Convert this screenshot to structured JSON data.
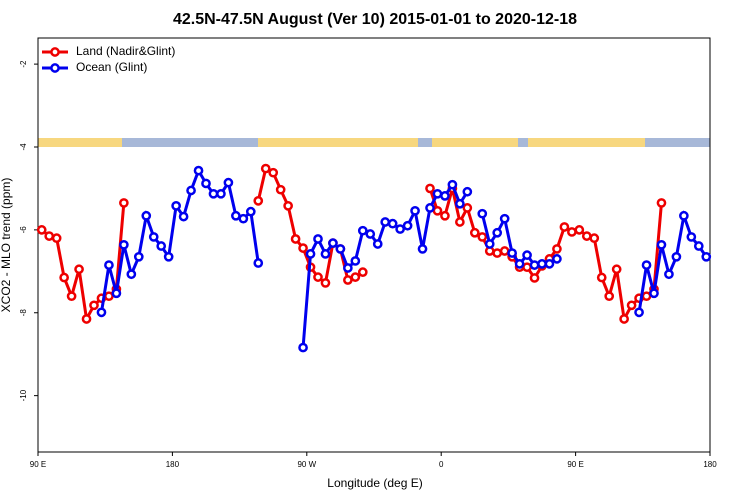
{
  "chart_data": {
    "type": "line",
    "title": "42.5N-47.5N August (Ver 10)   2015-01-01 to 2020-12-18",
    "x_label": "Longitude (deg E)",
    "y_label": "XCO2 - MLO trend (ppm)",
    "x": [
      92.5,
      97.5,
      102.5,
      107.5,
      112.5,
      117.5,
      122.5,
      127.5,
      132.5,
      137.5,
      142.5,
      147.5,
      152.5,
      157.5,
      162.5,
      167.5,
      172.5,
      177.5,
      182.5,
      187.5,
      192.5,
      197.5,
      202.5,
      207.5,
      212.5,
      217.5,
      222.5,
      227.5,
      232.5,
      237.5,
      242.5,
      247.5,
      252.5,
      257.5,
      262.5,
      267.5,
      272.5,
      277.5,
      282.5,
      287.5,
      292.5,
      297.5,
      302.5,
      307.5,
      312.5,
      317.5,
      322.5,
      327.5,
      332.5,
      337.5,
      342.5,
      347.5,
      352.5,
      357.5,
      362.5,
      367.5,
      372.5,
      377.5,
      382.5,
      387.5,
      392.5,
      397.5,
      402.5,
      407.5,
      412.5,
      417.5,
      422.5,
      427.5,
      432.5,
      437.5,
      442.5,
      447.5,
      452.5,
      457.5,
      462.5,
      467.5,
      472.5,
      477.5,
      482.5,
      487.5,
      492.5,
      497.5,
      502.5,
      507.5,
      512.5,
      517.5,
      522.5,
      527.5,
      532.5,
      537.5
    ],
    "series": [
      {
        "name": "Land (Nadir&Glint)",
        "color": "#ee0000",
        "values": [
          -6.0,
          -6.15,
          -6.2,
          -7.15,
          -7.6,
          -6.95,
          -8.15,
          -7.82,
          -7.65,
          -7.6,
          -7.43,
          -5.35,
          null,
          null,
          null,
          null,
          null,
          null,
          null,
          null,
          null,
          null,
          null,
          null,
          null,
          null,
          null,
          null,
          null,
          -5.3,
          -4.52,
          -4.62,
          -5.03,
          -5.42,
          -6.22,
          -6.44,
          -6.9,
          -7.14,
          -7.28,
          -6.32,
          -6.46,
          -7.21,
          -7.14,
          -7.02,
          null,
          null,
          null,
          null,
          null,
          null,
          null,
          null,
          -5.0,
          -5.54,
          -5.66,
          -5.0,
          -5.81,
          -5.47,
          -6.07,
          -6.17,
          -6.51,
          -6.56,
          -6.51,
          -6.65,
          -6.9,
          -6.9,
          -7.16,
          -6.87,
          -6.7,
          -6.46,
          -5.93,
          -6.05,
          -6.0,
          -6.15,
          -6.2,
          -7.15,
          -7.6,
          -6.95,
          -8.15,
          -7.82,
          -7.65,
          -7.6,
          -7.43,
          -5.35,
          null,
          null,
          null,
          null,
          null,
          null
        ]
      },
      {
        "name": "Ocean (Glint)",
        "color": "#0000ee",
        "values": [
          null,
          null,
          null,
          null,
          null,
          null,
          null,
          null,
          -7.99,
          -6.85,
          -7.53,
          -6.36,
          -7.07,
          -6.65,
          -5.66,
          -6.17,
          -6.39,
          -6.65,
          -5.42,
          -5.68,
          -5.05,
          -4.57,
          -4.88,
          -5.13,
          -5.13,
          -4.86,
          -5.66,
          -5.73,
          -5.56,
          -6.8,
          null,
          null,
          null,
          null,
          null,
          -8.84,
          -6.58,
          -6.22,
          -6.58,
          -6.32,
          -6.46,
          -6.92,
          -6.75,
          -6.02,
          -6.1,
          -6.34,
          -5.81,
          -5.85,
          -5.98,
          -5.9,
          -5.54,
          -6.46,
          -5.47,
          -5.13,
          -5.18,
          -4.91,
          -5.37,
          -5.08,
          null,
          -5.61,
          -6.34,
          -6.07,
          -5.73,
          -6.56,
          -6.82,
          -6.61,
          -6.85,
          -6.82,
          -6.82,
          -6.7,
          null,
          null,
          null,
          null,
          null,
          null,
          null,
          null,
          null,
          null,
          -7.99,
          -6.85,
          -7.53,
          -6.36,
          -7.07,
          -6.65,
          -5.66,
          -6.17,
          -6.39,
          -6.65
        ]
      }
    ],
    "xlim": [
      90,
      540
    ],
    "xticks": [
      {
        "value": 90,
        "label": "90 E"
      },
      {
        "value": 180,
        "label": "180"
      },
      {
        "value": 270,
        "label": "90 W"
      },
      {
        "value": 360,
        "label": "0"
      },
      {
        "value": 450,
        "label": "90 E"
      },
      {
        "value": 540,
        "label": "180"
      }
    ],
    "ylim": [
      -11.36,
      -1.37
    ],
    "yticks": [
      -2,
      -4,
      -6,
      -8,
      -10
    ],
    "legend": "top-left"
  }
}
